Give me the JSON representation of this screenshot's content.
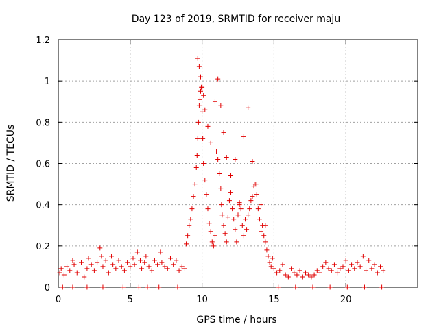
{
  "chart_data": {
    "type": "scatter",
    "title": "Day 123 of 2019, SRMTID for receiver maju",
    "xlabel": "GPS time / hours",
    "ylabel": "SRMTID / TECUs",
    "xlim": [
      0,
      25
    ],
    "ylim": [
      0,
      1.2
    ],
    "xticks": [
      0,
      5,
      10,
      15,
      20
    ],
    "xtick_labels": [
      "0",
      "5",
      "10",
      "15",
      "20"
    ],
    "yticks": [
      0,
      0.2,
      0.4,
      0.6,
      0.8,
      1,
      1.2
    ],
    "ytick_labels": [
      "0",
      "0.2",
      "0.4",
      "0.6",
      "0.8",
      "1",
      "1.2"
    ],
    "grid": true,
    "legend": "none",
    "marker": "+",
    "series": [
      {
        "name": "SRMTID",
        "color": "#e00000",
        "x": [
          0.1,
          0.2,
          0.4,
          0.6,
          0.8,
          1.0,
          1.1,
          1.3,
          1.6,
          1.8,
          2.0,
          2.1,
          2.3,
          2.5,
          2.7,
          2.9,
          3.0,
          3.1,
          3.3,
          3.5,
          3.7,
          3.8,
          4.0,
          4.2,
          4.4,
          4.6,
          4.8,
          5.0,
          5.2,
          5.3,
          5.5,
          5.7,
          5.8,
          6.0,
          6.1,
          6.3,
          6.5,
          6.7,
          6.9,
          7.1,
          7.2,
          7.4,
          7.6,
          7.8,
          8.0,
          8.2,
          8.4,
          8.6,
          8.8,
          8.9,
          9.0,
          9.1,
          9.2,
          9.3,
          9.4,
          9.5,
          9.6,
          9.65,
          9.7,
          9.75,
          9.8,
          9.85,
          9.9,
          9.95,
          10.0,
          10.05,
          10.1,
          10.2,
          10.3,
          10.4,
          10.5,
          10.6,
          10.7,
          10.8,
          10.9,
          11.0,
          11.1,
          11.2,
          11.3,
          11.35,
          11.4,
          11.5,
          11.6,
          11.7,
          11.8,
          11.9,
          12.0,
          12.1,
          12.2,
          12.3,
          12.4,
          12.5,
          12.6,
          12.7,
          12.8,
          12.9,
          13.0,
          13.1,
          13.2,
          13.3,
          13.4,
          13.5,
          13.6,
          13.7,
          13.8,
          13.9,
          14.0,
          14.1,
          14.2,
          14.3,
          14.4,
          14.5,
          14.6,
          14.7,
          14.8,
          14.9,
          15.0,
          15.2,
          15.4,
          15.6,
          15.8,
          16.0,
          16.2,
          16.4,
          16.6,
          16.8,
          17.0,
          17.2,
          17.4,
          17.6,
          17.8,
          18.0,
          18.2,
          18.4,
          18.6,
          18.8,
          19.0,
          19.2,
          19.4,
          19.6,
          19.8,
          20.0,
          20.2,
          20.4,
          20.6,
          20.8,
          21.0,
          21.2,
          21.4,
          21.6,
          21.8,
          22.0,
          22.2,
          22.4,
          22.6,
          9.7,
          9.8,
          9.9,
          10.0,
          10.1,
          10.2,
          10.4,
          10.6,
          10.9,
          11.1,
          11.3,
          11.5,
          11.7,
          12.0,
          12.3,
          12.6,
          12.9,
          13.2,
          13.5,
          13.8,
          14.1,
          14.4,
          0.3,
          1.0,
          2.0,
          3.1,
          4.5,
          5.6,
          6.2,
          7.0,
          8.3,
          15.3,
          16.5,
          17.7,
          18.9,
          20.1,
          21.3,
          22.5
        ],
        "y": [
          0.07,
          0.09,
          0.06,
          0.1,
          0.08,
          0.13,
          0.11,
          0.07,
          0.12,
          0.05,
          0.09,
          0.14,
          0.11,
          0.08,
          0.12,
          0.19,
          0.15,
          0.1,
          0.13,
          0.07,
          0.15,
          0.11,
          0.09,
          0.13,
          0.1,
          0.08,
          0.12,
          0.1,
          0.14,
          0.11,
          0.17,
          0.13,
          0.09,
          0.12,
          0.15,
          0.1,
          0.08,
          0.13,
          0.11,
          0.17,
          0.12,
          0.1,
          0.09,
          0.14,
          0.11,
          0.13,
          0.08,
          0.1,
          0.09,
          0.21,
          0.25,
          0.3,
          0.33,
          0.38,
          0.44,
          0.5,
          0.58,
          0.64,
          0.72,
          0.8,
          0.88,
          0.91,
          0.95,
          0.97,
          0.85,
          0.72,
          0.6,
          0.52,
          0.45,
          0.38,
          0.31,
          0.27,
          0.22,
          0.2,
          0.25,
          0.66,
          0.62,
          0.55,
          0.48,
          0.4,
          0.35,
          0.3,
          0.26,
          0.22,
          0.34,
          0.42,
          0.46,
          0.38,
          0.33,
          0.28,
          0.22,
          0.35,
          0.41,
          0.38,
          0.3,
          0.25,
          0.33,
          0.28,
          0.35,
          0.38,
          0.42,
          0.44,
          0.49,
          0.5,
          0.45,
          0.38,
          0.33,
          0.27,
          0.3,
          0.25,
          0.22,
          0.18,
          0.15,
          0.12,
          0.1,
          0.14,
          0.09,
          0.07,
          0.08,
          0.11,
          0.06,
          0.05,
          0.09,
          0.07,
          0.06,
          0.08,
          0.05,
          0.07,
          0.06,
          0.05,
          0.06,
          0.08,
          0.07,
          0.1,
          0.12,
          0.09,
          0.08,
          0.11,
          0.07,
          0.09,
          0.1,
          0.13,
          0.08,
          0.11,
          0.09,
          0.12,
          0.1,
          0.15,
          0.08,
          0.13,
          0.09,
          0.11,
          0.07,
          0.1,
          0.08,
          1.11,
          1.07,
          1.02,
          0.97,
          0.93,
          0.86,
          0.78,
          0.7,
          0.9,
          1.01,
          0.88,
          0.75,
          0.63,
          0.54,
          0.62,
          0.4,
          0.73,
          0.87,
          0.61,
          0.5,
          0.4,
          0.3,
          0.0,
          0.0,
          0.0,
          0.0,
          0.0,
          0.0,
          0.0,
          0.0,
          0.0,
          0.0,
          0.0,
          0.0,
          0.0,
          0.0,
          0.0,
          0.0
        ]
      }
    ]
  }
}
